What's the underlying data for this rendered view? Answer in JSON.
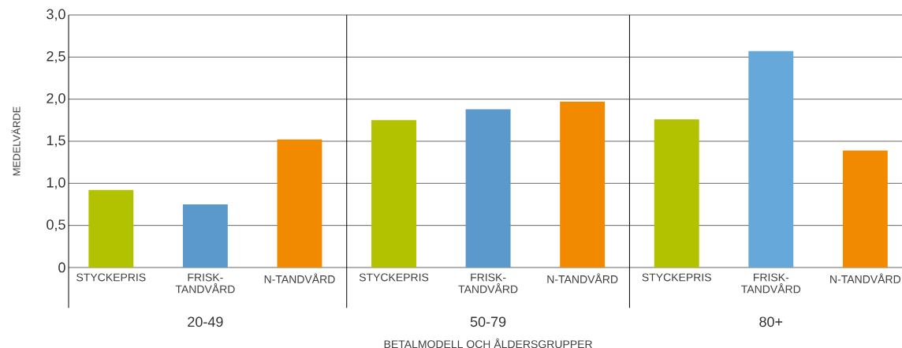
{
  "chart_data": {
    "type": "bar",
    "ylabel": "MEDELVÄRDE",
    "xlabel": "BETALMODELL OCH ÅLDERSGRUPPER",
    "categories": [
      "STYCKEPRIS",
      "FRISK-TANDVÅRD",
      "N-TANDVÅRD",
      "STYCKEPRIS",
      "FRISK-TANDVÅRD",
      "N-TANDVÅRD",
      "STYCKEPRIS",
      "FRISK-TANDVÅRD",
      "N-TANDVÅRD"
    ],
    "values": [
      0.92,
      0.75,
      1.52,
      1.75,
      1.88,
      1.97,
      1.76,
      2.57,
      1.39
    ],
    "colors": [
      "#b2c100",
      "#5b98cb",
      "#f28a00",
      "#b2c100",
      "#5b98cb",
      "#f28a00",
      "#b2c100",
      "#65a8d9",
      "#f28a00"
    ],
    "annotations": [
      "20-49",
      "50-79",
      "80+"
    ],
    "ylim": [
      0,
      3
    ],
    "yticks": [
      0,
      {
        "value": 0.5,
        "label": "0,5"
      },
      {
        "value": 1,
        "label": "1,0"
      },
      {
        "value": 1.5,
        "label": "1,5"
      },
      {
        "value": 2,
        "label": "2,0"
      },
      {
        "value": 2.5,
        "label": "2,5"
      },
      {
        "value": 3,
        "label": "3,0"
      }
    ],
    "grid": "y"
  }
}
